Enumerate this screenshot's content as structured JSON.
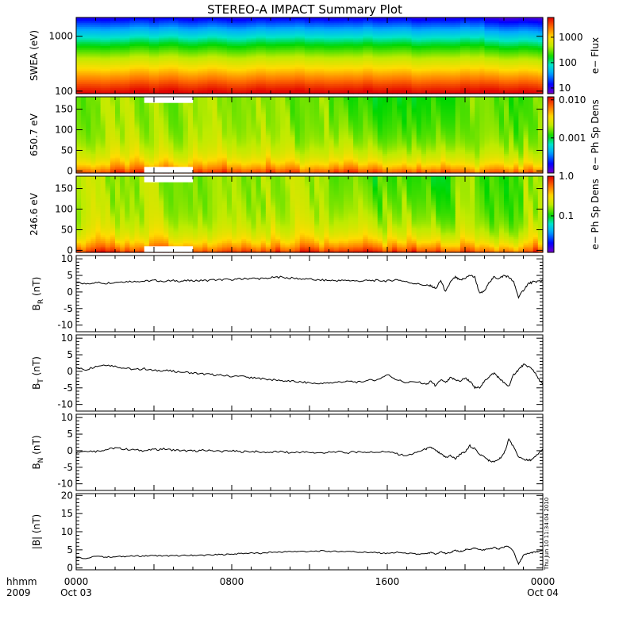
{
  "figure": {
    "title": "STEREO-A IMPACT Summary Plot",
    "timestamp": "Thu Jun 10 11:34:04 2010",
    "time_label": "hhmm",
    "year_label": "2009",
    "time_ticks": [
      {
        "hour": 0,
        "label": "0000",
        "date": "Oct 03"
      },
      {
        "hour": 8,
        "label": "0800",
        "date": ""
      },
      {
        "hour": 16,
        "label": "1600",
        "date": ""
      },
      {
        "hour": 24,
        "label": "0000",
        "date": "Oct 04"
      }
    ]
  },
  "chart_data": [
    {
      "type": "heatmap",
      "id": "swea",
      "ylabel": "SWEA (eV)",
      "yscale": "log",
      "ylim": [
        90,
        2200
      ],
      "yticks": [
        {
          "v": 100,
          "label": "100"
        },
        {
          "v": 1000,
          "label": "1000"
        }
      ],
      "colorbar": {
        "label": "e− Flux",
        "scale": "log",
        "range": [
          6,
          6000
        ],
        "ticks": [
          {
            "v": 10,
            "label": "10"
          },
          {
            "v": 100,
            "label": "100"
          },
          {
            "v": 1000,
            "label": "1000"
          }
        ]
      }
    },
    {
      "type": "heatmap",
      "id": "pad650",
      "ylabel": "650.7 eV",
      "yscale": "linear",
      "ylim": [
        -5,
        180
      ],
      "yticks": [
        {
          "v": 0,
          "label": "0"
        },
        {
          "v": 50,
          "label": "50"
        },
        {
          "v": 100,
          "label": "100"
        },
        {
          "v": 150,
          "label": "150"
        }
      ],
      "colorbar": {
        "label": "e− Ph Sp Dens",
        "scale": "log",
        "range": [
          0.00012,
          0.012
        ],
        "ticks": [
          {
            "v": 0.001,
            "label": "0.001"
          },
          {
            "v": 0.01,
            "label": "0.010"
          }
        ]
      }
    },
    {
      "type": "heatmap",
      "id": "pad246",
      "ylabel": "246.6 eV",
      "yscale": "linear",
      "ylim": [
        -5,
        180
      ],
      "yticks": [
        {
          "v": 0,
          "label": "0"
        },
        {
          "v": 50,
          "label": "50"
        },
        {
          "v": 100,
          "label": "100"
        },
        {
          "v": 150,
          "label": "150"
        }
      ],
      "colorbar": {
        "label": "e− Ph Sp Dens",
        "scale": "log",
        "range": [
          0.012,
          1.0
        ],
        "ticks": [
          {
            "v": 0.1,
            "label": "0.1"
          },
          {
            "v": 1.0,
            "label": "1.0"
          }
        ]
      }
    },
    {
      "type": "line",
      "id": "br",
      "ylabel_main": "B",
      "ylabel_sub": "R",
      "ylabel_unit": "(nT)",
      "ylim": [
        -12,
        11
      ],
      "yticks": [
        -10,
        -5,
        0,
        5,
        10
      ],
      "x": [
        0,
        0.5,
        1,
        1.5,
        2,
        2.5,
        3,
        3.5,
        4,
        4.5,
        5,
        5.5,
        6,
        6.5,
        7,
        7.5,
        8,
        8.5,
        9,
        9.5,
        10,
        10.5,
        11,
        11.5,
        12,
        12.5,
        13,
        13.5,
        14,
        14.5,
        15,
        15.5,
        16,
        16.5,
        17,
        17.5,
        18,
        18.25,
        18.5,
        18.75,
        19,
        19.25,
        19.5,
        19.75,
        20,
        20.25,
        20.5,
        20.75,
        21,
        21.25,
        21.5,
        21.75,
        22,
        22.25,
        22.5,
        22.75,
        23,
        23.25,
        23.5,
        23.75,
        24
      ],
      "y": [
        2.8,
        2.5,
        2.9,
        2.6,
        3.0,
        3.1,
        3.3,
        3.2,
        3.5,
        3.3,
        3.4,
        3.3,
        3.5,
        3.4,
        3.6,
        3.7,
        3.8,
        3.9,
        4.1,
        4.0,
        4.3,
        4.5,
        4.2,
        4.0,
        3.8,
        3.6,
        3.5,
        3.4,
        3.5,
        3.3,
        3.4,
        3.5,
        3.3,
        3.8,
        3.0,
        2.5,
        2.0,
        1.8,
        1.0,
        3.5,
        0.0,
        3.0,
        4.5,
        3.5,
        4.2,
        5.0,
        4.5,
        -0.5,
        0.2,
        3.0,
        4.5,
        4.0,
        5.0,
        4.5,
        3.0,
        -1.5,
        0.5,
        2.5,
        3.0,
        3.2,
        3.5
      ]
    },
    {
      "type": "line",
      "id": "bt",
      "ylabel_main": "B",
      "ylabel_sub": "T",
      "ylabel_unit": "(nT)",
      "ylim": [
        -12,
        11
      ],
      "yticks": [
        -10,
        -5,
        0,
        5,
        10
      ],
      "x": [
        0,
        0.5,
        1,
        1.5,
        2,
        2.5,
        3,
        3.5,
        4,
        4.5,
        5,
        5.5,
        6,
        6.5,
        7,
        7.5,
        8,
        8.5,
        9,
        9.5,
        10,
        10.5,
        11,
        11.5,
        12,
        12.5,
        13,
        13.5,
        14,
        14.5,
        15,
        15.5,
        16,
        16.5,
        17,
        17.5,
        18,
        18.25,
        18.5,
        18.75,
        19,
        19.25,
        19.5,
        19.75,
        20,
        20.25,
        20.5,
        20.75,
        21,
        21.25,
        21.5,
        21.75,
        22,
        22.25,
        22.5,
        22.75,
        23,
        23.25,
        23.5,
        23.75,
        24
      ],
      "y": [
        1.0,
        0.5,
        1.5,
        2.0,
        1.5,
        1.0,
        0.5,
        0.8,
        0.2,
        0.3,
        0.0,
        -0.2,
        -0.5,
        -0.8,
        -1.0,
        -1.2,
        -1.5,
        -1.5,
        -2.0,
        -2.2,
        -2.5,
        -2.8,
        -3.0,
        -3.2,
        -3.5,
        -3.8,
        -3.5,
        -3.2,
        -3.0,
        -3.3,
        -2.8,
        -2.5,
        -1.0,
        -2.5,
        -3.5,
        -3.0,
        -4.0,
        -3.0,
        -4.5,
        -2.5,
        -3.5,
        -2.0,
        -2.5,
        -3.0,
        -2.0,
        -3.0,
        -5.0,
        -4.8,
        -3.0,
        -1.5,
        -0.5,
        -2.0,
        -3.5,
        -4.5,
        -1.0,
        0.5,
        2.0,
        1.5,
        0.5,
        -2.0,
        -4.0
      ]
    },
    {
      "type": "line",
      "id": "bn",
      "ylabel_main": "B",
      "ylabel_sub": "N",
      "ylabel_unit": "(nT)",
      "ylim": [
        -12,
        11
      ],
      "yticks": [
        -10,
        -5,
        0,
        5,
        10
      ],
      "x": [
        0,
        0.5,
        1,
        1.5,
        2,
        2.5,
        3,
        3.5,
        4,
        4.5,
        5,
        5.5,
        6,
        6.5,
        7,
        7.5,
        8,
        8.5,
        9,
        9.5,
        10,
        10.5,
        11,
        11.5,
        12,
        12.5,
        13,
        13.5,
        14,
        14.5,
        15,
        15.5,
        16,
        16.5,
        17,
        17.5,
        18,
        18.25,
        18.5,
        18.75,
        19,
        19.25,
        19.5,
        19.75,
        20,
        20.25,
        20.5,
        20.75,
        21,
        21.25,
        21.5,
        21.75,
        22,
        22.25,
        22.5,
        22.75,
        23,
        23.25,
        23.5,
        23.75,
        24
      ],
      "y": [
        -0.5,
        0.0,
        -0.2,
        0.3,
        0.8,
        0.5,
        0.2,
        0.0,
        0.3,
        0.5,
        0.2,
        0.0,
        -0.1,
        0.1,
        0.0,
        -0.2,
        -0.1,
        -0.3,
        -0.2,
        -0.4,
        -0.5,
        -0.3,
        -0.6,
        -0.4,
        -0.5,
        -0.7,
        -0.5,
        -0.4,
        -0.6,
        -0.3,
        -0.5,
        -0.4,
        -0.3,
        -1.0,
        -1.5,
        -0.5,
        0.5,
        1.0,
        0.0,
        -1.0,
        -2.0,
        -1.5,
        -2.5,
        -1.0,
        -0.5,
        1.5,
        0.5,
        -1.0,
        -2.0,
        -3.0,
        -3.5,
        -2.5,
        -1.0,
        3.5,
        1.0,
        -2.0,
        -2.5,
        -3.0,
        -2.5,
        -1.0,
        0.5
      ]
    },
    {
      "type": "line",
      "id": "bmag",
      "ylabel_main": "|B|",
      "ylabel_sub": "",
      "ylabel_unit": "(nT)",
      "ylim": [
        -0.5,
        20.5
      ],
      "yticks": [
        0,
        5,
        10,
        15,
        20
      ],
      "x": [
        0,
        0.5,
        1,
        1.5,
        2,
        2.5,
        3,
        3.5,
        4,
        4.5,
        5,
        5.5,
        6,
        6.5,
        7,
        7.5,
        8,
        8.5,
        9,
        9.5,
        10,
        10.5,
        11,
        11.5,
        12,
        12.5,
        13,
        13.5,
        14,
        14.5,
        15,
        15.5,
        16,
        16.5,
        17,
        17.5,
        18,
        18.25,
        18.5,
        18.75,
        19,
        19.25,
        19.5,
        19.75,
        20,
        20.25,
        20.5,
        20.75,
        21,
        21.25,
        21.5,
        21.75,
        22,
        22.25,
        22.5,
        22.75,
        23,
        23.25,
        23.5,
        23.75,
        24
      ],
      "y": [
        3.0,
        2.6,
        3.2,
        3.0,
        3.1,
        3.2,
        3.3,
        3.3,
        3.4,
        3.3,
        3.4,
        3.4,
        3.5,
        3.5,
        3.6,
        3.7,
        3.8,
        4.0,
        4.1,
        4.0,
        4.3,
        4.4,
        4.5,
        4.6,
        4.5,
        4.7,
        4.6,
        4.5,
        4.6,
        4.4,
        4.3,
        4.2,
        4.0,
        4.3,
        4.1,
        3.8,
        3.9,
        4.2,
        3.8,
        4.5,
        4.0,
        4.3,
        4.8,
        4.5,
        5.0,
        5.2,
        5.5,
        5.0,
        5.0,
        5.3,
        5.6,
        5.3,
        5.8,
        5.9,
        4.5,
        1.0,
        3.5,
        4.0,
        4.3,
        4.5,
        4.8
      ]
    }
  ]
}
